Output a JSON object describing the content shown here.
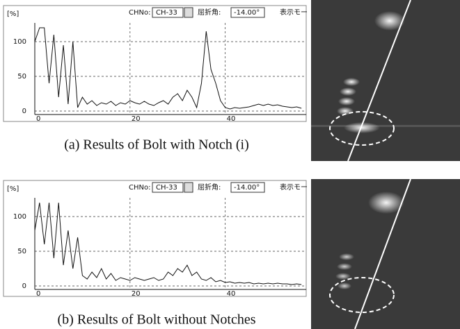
{
  "chart_data": [
    {
      "type": "line",
      "ylabel": "[%]",
      "channel_label": "CHNo:",
      "channel": "CH-33",
      "angle_label": "屈折角:",
      "angle": "-14.00°",
      "mode_label": "表示モー",
      "caption": "(a) Results of Bolt with Notch (i)",
      "color": "#111111",
      "grid": true,
      "xlim": [
        0,
        57
      ],
      "ylim": [
        -5,
        127
      ],
      "xticks": [
        0,
        20,
        40
      ],
      "yticks": [
        0,
        50,
        100
      ],
      "x": [
        0,
        1,
        2,
        3,
        4,
        5,
        6,
        7,
        8,
        9,
        10,
        11,
        12,
        13,
        14,
        15,
        16,
        17,
        18,
        19,
        20,
        21,
        22,
        23,
        24,
        25,
        26,
        27,
        28,
        29,
        30,
        31,
        32,
        33,
        34,
        35,
        36,
        37,
        38,
        39,
        40,
        41,
        42,
        43,
        44,
        45,
        46,
        47,
        48,
        49,
        50,
        51,
        52,
        53,
        54,
        55,
        56
      ],
      "values": [
        100,
        120,
        120,
        40,
        110,
        20,
        95,
        10,
        100,
        5,
        20,
        10,
        15,
        8,
        12,
        10,
        14,
        8,
        12,
        10,
        15,
        12,
        10,
        14,
        10,
        8,
        12,
        15,
        10,
        20,
        25,
        15,
        30,
        20,
        5,
        40,
        115,
        60,
        40,
        15,
        5,
        3,
        5,
        4,
        5,
        6,
        8,
        10,
        8,
        10,
        8,
        9,
        7,
        6,
        5,
        6,
        4
      ]
    },
    {
      "type": "line",
      "ylabel": "[%]",
      "channel_label": "CHNo:",
      "channel": "CH-33",
      "angle_label": "屈折角:",
      "angle": "-14.00°",
      "mode_label": "表示モー",
      "caption": "(b) Results of Bolt without Notches",
      "color": "#111111",
      "grid": true,
      "xlim": [
        0,
        57
      ],
      "ylim": [
        -5,
        127
      ],
      "xticks": [
        0,
        20,
        40
      ],
      "yticks": [
        0,
        50,
        100
      ],
      "x": [
        0,
        1,
        2,
        3,
        4,
        5,
        6,
        7,
        8,
        9,
        10,
        11,
        12,
        13,
        14,
        15,
        16,
        17,
        18,
        19,
        20,
        21,
        22,
        23,
        24,
        25,
        26,
        27,
        28,
        29,
        30,
        31,
        32,
        33,
        34,
        35,
        36,
        37,
        38,
        39,
        40,
        41,
        42,
        43,
        44,
        45,
        46,
        47,
        48,
        49,
        50,
        51,
        52,
        53,
        54,
        55,
        56
      ],
      "values": [
        80,
        120,
        60,
        120,
        40,
        120,
        30,
        80,
        25,
        70,
        15,
        10,
        20,
        12,
        25,
        10,
        18,
        8,
        12,
        10,
        8,
        12,
        10,
        8,
        10,
        12,
        8,
        10,
        20,
        15,
        25,
        20,
        30,
        15,
        20,
        10,
        8,
        12,
        6,
        8,
        5,
        6,
        4,
        5,
        4,
        5,
        3,
        4,
        3,
        4,
        3,
        4,
        3,
        3,
        2,
        3,
        2
      ]
    }
  ]
}
